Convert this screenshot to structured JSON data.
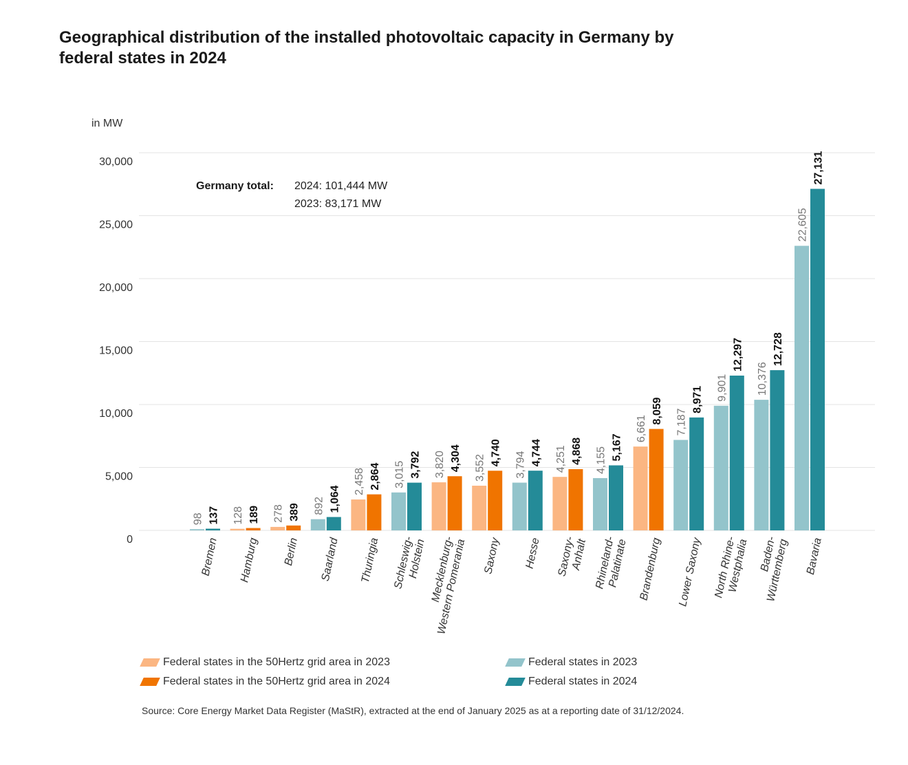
{
  "title_line1": "Geographical distribution of the installed photovoltaic capacity in Germany by",
  "title_line2": "federal states in 2024",
  "total": {
    "label": "Germany total:",
    "line_2024": "2024: 101,444 MW",
    "line_2023": "2023: 83,171 MW"
  },
  "legend": [
    {
      "label": "Federal states in the 50Hertz grid area in 2023",
      "color": "#fbb682"
    },
    {
      "label": "Federal states in the 50Hertz grid area in 2024",
      "color": "#f07400"
    },
    {
      "label": "Federal states in 2023",
      "color": "#93c4cb"
    },
    {
      "label": "Federal states in 2024",
      "color": "#248b98"
    }
  ],
  "source": "Source: Core Energy Market Data Register (MaStR), extracted at the end of January 2025 as at a reporting date of 31/12/2024.",
  "colors": {
    "hertz_2023": "#fbb682",
    "hertz_2024": "#f07400",
    "other_2023": "#93c4cb",
    "other_2024": "#248b98",
    "label_2023": "#777777",
    "label_2024": "#111111"
  },
  "chart_data": {
    "type": "bar",
    "ylabel": "in MW",
    "ylim": [
      0,
      30000
    ],
    "yticks": [
      "0",
      "5,000",
      "10,000",
      "15,000",
      "20,000",
      "25,000",
      "30,000"
    ],
    "grid": true,
    "categories": [
      [
        "Bremen"
      ],
      [
        "Hamburg"
      ],
      [
        "Berlin"
      ],
      [
        "Saarland"
      ],
      [
        "Thuringia"
      ],
      [
        "Schleswig-",
        "Holstein"
      ],
      [
        "Mecklenburg-",
        "Western Pomerania"
      ],
      [
        "Saxony"
      ],
      [
        "Hesse"
      ],
      [
        "Saxony-",
        "Anhalt"
      ],
      [
        "Rhineland-",
        "Palatinate"
      ],
      [
        "Brandenburg"
      ],
      [
        "Lower Saxony"
      ],
      [
        "North Rhine-",
        "Westphalia"
      ],
      [
        "Baden-",
        "Württemberg"
      ],
      [
        "Bavaria"
      ]
    ],
    "hertz_area": [
      false,
      true,
      true,
      false,
      true,
      false,
      true,
      true,
      false,
      true,
      false,
      true,
      false,
      false,
      false,
      false
    ],
    "series": [
      {
        "values": [
          98,
          128,
          278,
          892,
          2458,
          3015,
          3820,
          3552,
          3794,
          4251,
          4155,
          6661,
          7187,
          9901,
          10376,
          22605
        ],
        "labels": [
          "98",
          "128",
          "278",
          "892",
          "2,458",
          "3,015",
          "3,820",
          "3,552",
          "3,794",
          "4,251",
          "4,155",
          "6,661",
          "7,187",
          "9,901",
          "10,376",
          "22,605"
        ]
      },
      {
        "values": [
          137,
          189,
          389,
          1064,
          2864,
          3792,
          4304,
          4740,
          4744,
          4868,
          5167,
          8059,
          8971,
          12297,
          12728,
          27131
        ],
        "labels": [
          "137",
          "189",
          "389",
          "1,064",
          "2,864",
          "3,792",
          "4,304",
          "4,740",
          "4,744",
          "4,868",
          "5,167",
          "8,059",
          "8,971",
          "12,297",
          "12,728",
          "27,131"
        ]
      }
    ]
  }
}
